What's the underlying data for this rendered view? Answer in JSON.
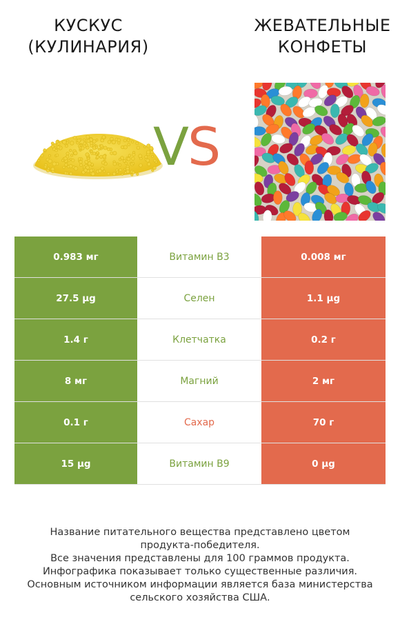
{
  "left_food": {
    "title": "КУСКУС\n(КУЛИНАРИЯ)",
    "image": "couscous-pile",
    "color": "#7ba23f"
  },
  "right_food": {
    "title": "ЖЕВАТЕЛЬНЫЕ\nКОНФЕТЫ",
    "image": "jelly-beans",
    "color": "#e36a4d"
  },
  "vs": {
    "v": "V",
    "s": "S"
  },
  "rows": [
    {
      "left": "0.983 мг",
      "nutrient": "Витамин B3",
      "right": "0.008 мг",
      "winner": "left"
    },
    {
      "left": "27.5 µg",
      "nutrient": "Селен",
      "right": "1.1 µg",
      "winner": "left"
    },
    {
      "left": "1.4 г",
      "nutrient": "Клетчатка",
      "right": "0.2 г",
      "winner": "left"
    },
    {
      "left": "8 мг",
      "nutrient": "Магний",
      "right": "2 мг",
      "winner": "left"
    },
    {
      "left": "0.1 г",
      "nutrient": "Сахар",
      "right": "70 г",
      "winner": "right"
    },
    {
      "left": "15 µg",
      "nutrient": "Витамин B9",
      "right": "0 µg",
      "winner": "left"
    }
  ],
  "footer": {
    "line1": "Название питательного вещества представлено цветом\nпродукта-победителя.",
    "line2": "Все значения представлены для 100 граммов продукта.",
    "line3": "Инфографика показывает только существенные различия.",
    "line4": "Основным источником информации является база министерства\nсельского хозяйства США."
  }
}
